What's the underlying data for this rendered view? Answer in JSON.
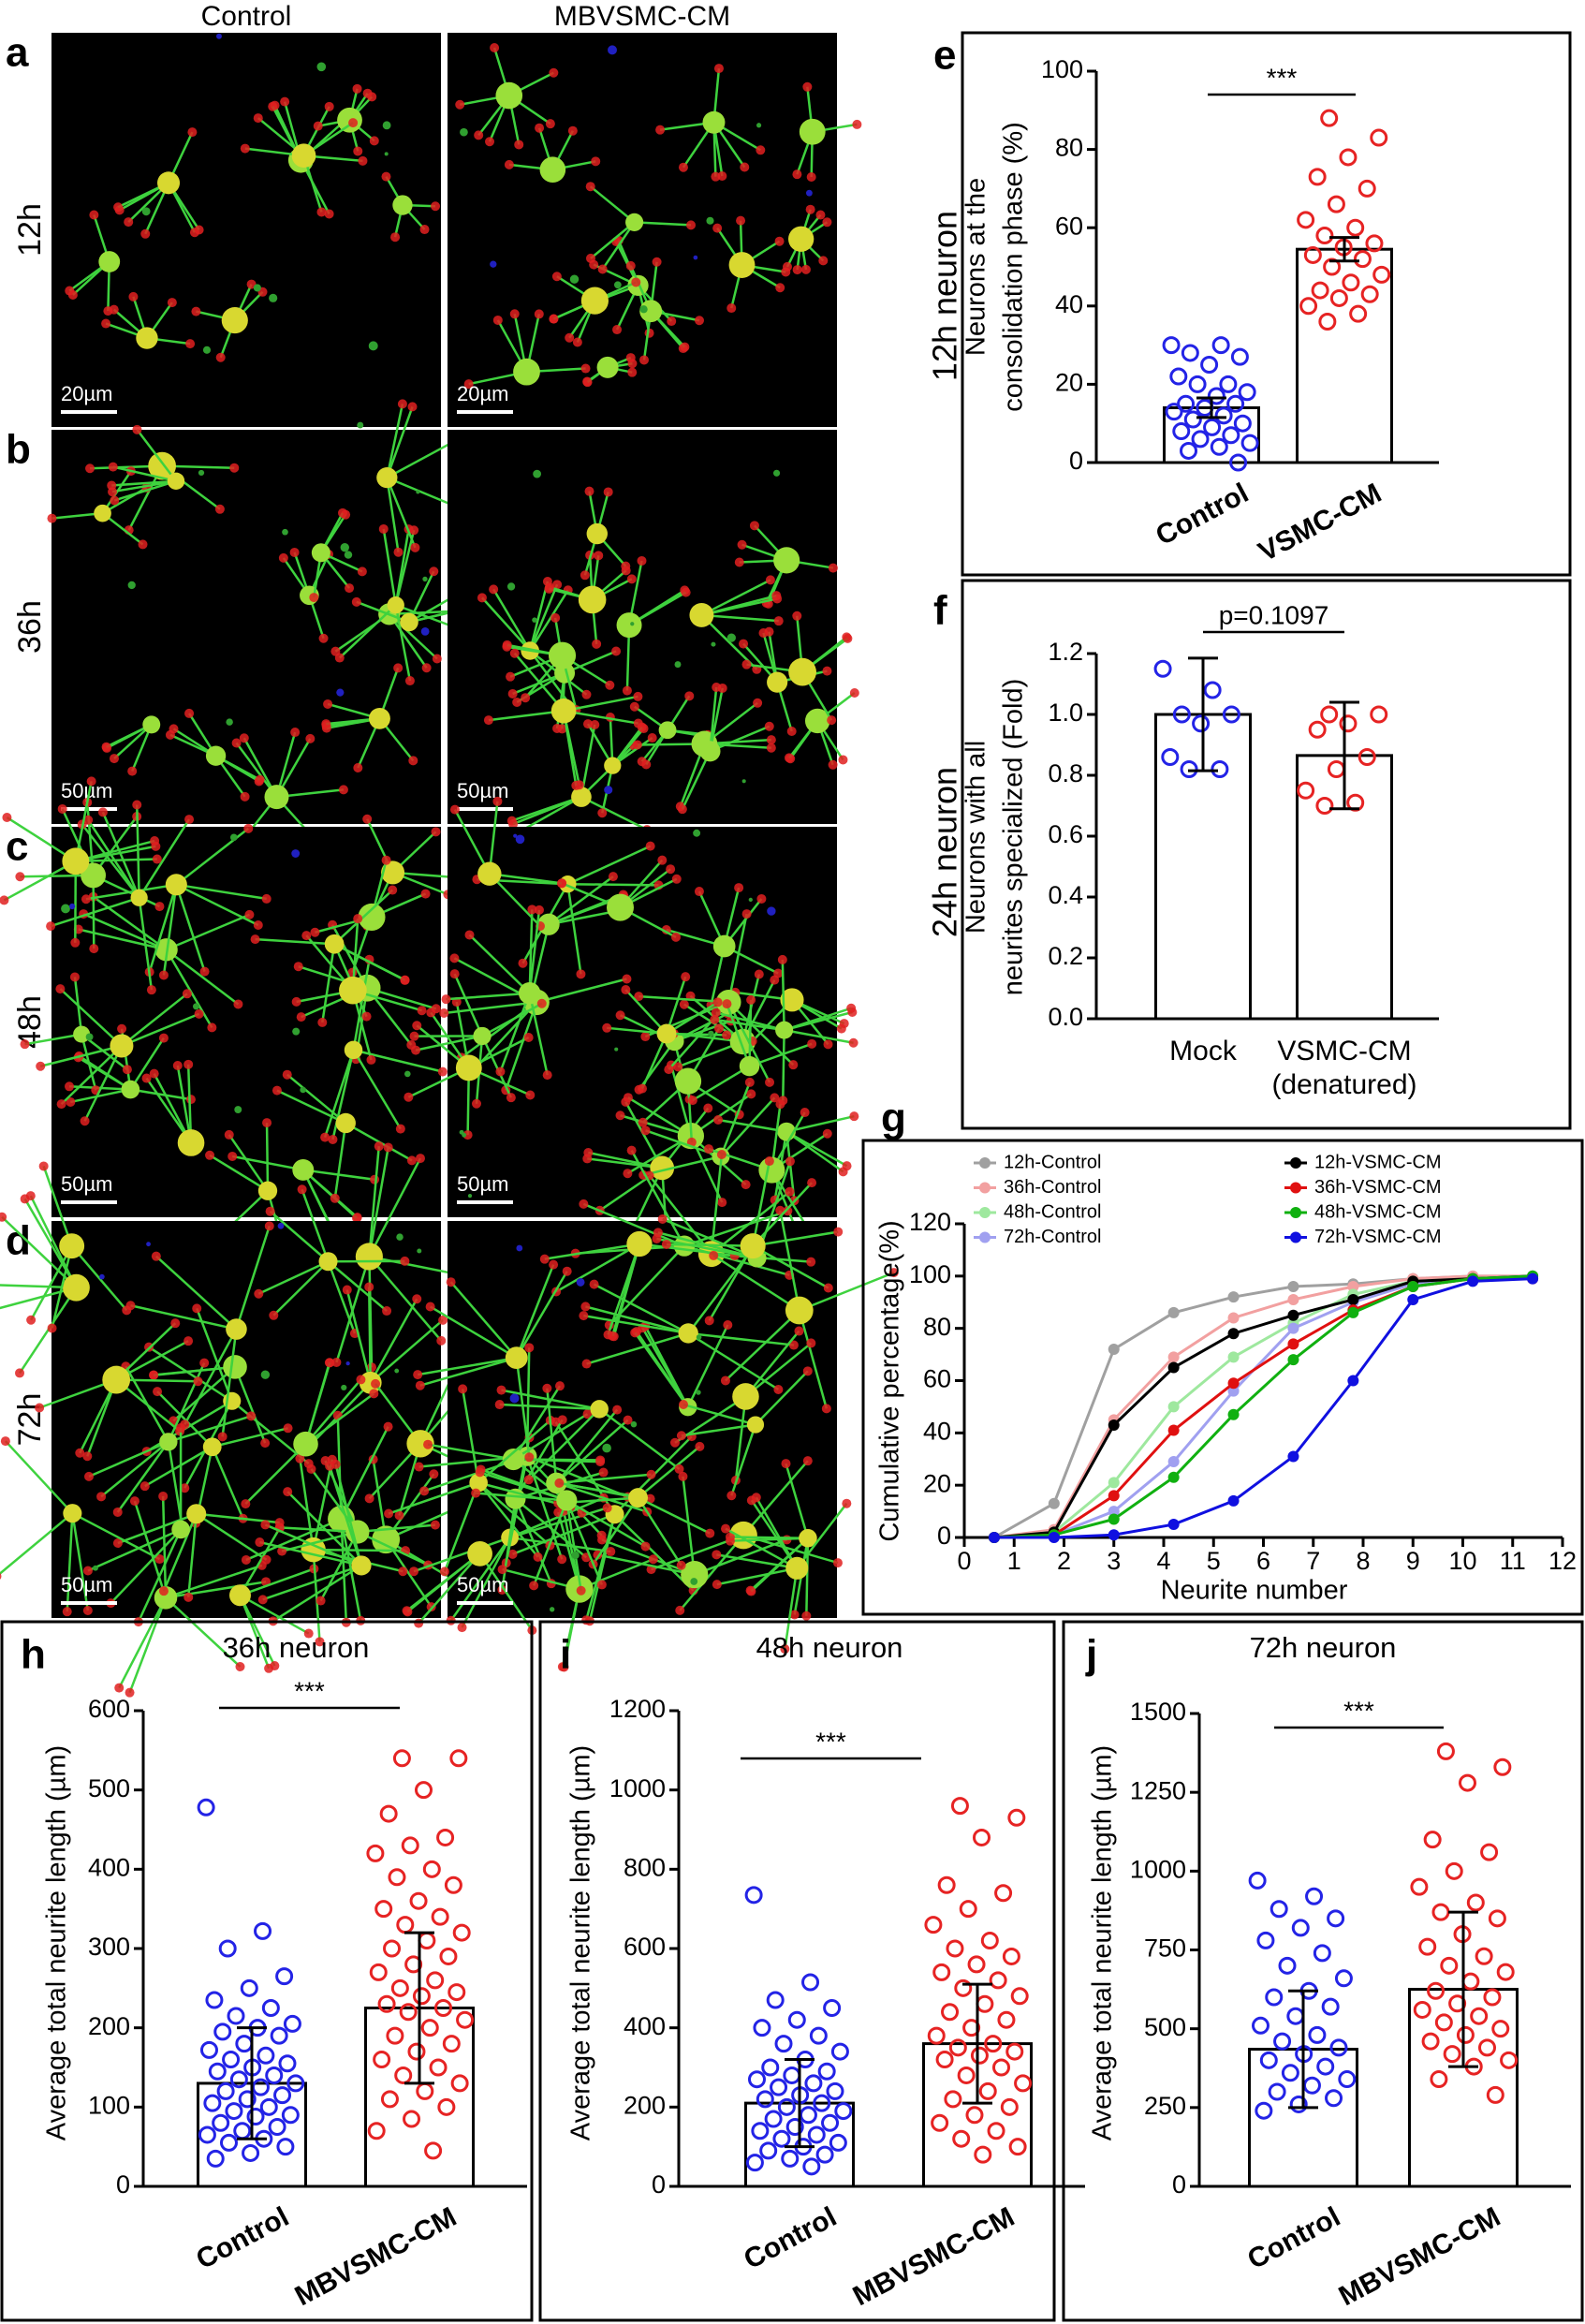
{
  "images": {
    "columns": [
      "Control",
      "MBVSMC-CM"
    ],
    "rows": [
      {
        "panel": "a",
        "label": "12h",
        "scale_bars": [
          "20µm",
          "20µm"
        ]
      },
      {
        "panel": "b",
        "label": "36h",
        "scale_bars": [
          "50µm",
          "50µm"
        ]
      },
      {
        "panel": "c",
        "label": "48h",
        "scale_bars": [
          "50µm",
          "50µm"
        ]
      },
      {
        "panel": "d",
        "label": "72h",
        "scale_bars": [
          "50µm",
          "50µm"
        ]
      }
    ]
  },
  "chart_data": [
    {
      "type": "bar",
      "panel": "e",
      "outer_label": "12h neuron",
      "ylabel": [
        "Neurons at  the",
        "consolidation phase (%)"
      ],
      "categories": [
        "Control",
        "VSMC-CM"
      ],
      "values": [
        14,
        54.5
      ],
      "errors": [
        2.5,
        3
      ],
      "points": [
        [
          30,
          30,
          28,
          27,
          25,
          22,
          20,
          20,
          18,
          17,
          15,
          15,
          14,
          13,
          12,
          11,
          10,
          9,
          8,
          7,
          6,
          5,
          4,
          3,
          0
        ],
        [
          88,
          83,
          78,
          73,
          70,
          66,
          62,
          60,
          58,
          56,
          55,
          53,
          52,
          50,
          48,
          46,
          44,
          43,
          42,
          40,
          38,
          36
        ]
      ],
      "point_colors": [
        "#2323e6",
        "#e62323"
      ],
      "ylim": [
        0,
        100
      ],
      "yticks": [
        0,
        20,
        40,
        60,
        80,
        100
      ],
      "significance": "***"
    },
    {
      "type": "bar",
      "panel": "f",
      "outer_label": "24h neuron",
      "ylabel": [
        "Neurons with all",
        "neurites specialized (Fold)"
      ],
      "categories": [
        "Mock",
        "VSMC-CM (denatured)"
      ],
      "values": [
        1.0,
        0.865
      ],
      "errors": [
        0.185,
        0.175
      ],
      "points": [
        [
          1.15,
          1.08,
          1.0,
          1.0,
          0.97,
          0.86,
          0.82,
          0.82
        ],
        [
          1.0,
          1.0,
          0.97,
          0.95,
          0.86,
          0.82,
          0.75,
          0.71,
          0.7
        ]
      ],
      "point_colors": [
        "#2323e6",
        "#e62323"
      ],
      "ylim": [
        0,
        1.2
      ],
      "yticks": [
        {
          "value": 0,
          "label": "0.0"
        },
        0.2,
        0.4,
        0.6,
        0.8,
        {
          "value": 1,
          "label": "1.0"
        },
        1.2
      ],
      "significance": "p=0.1097"
    },
    {
      "type": "line",
      "panel": "g",
      "xlabel": "Neurite number",
      "ylabel": [
        "Cumulative percentage(%)"
      ],
      "x": [
        0.6,
        1.8,
        3,
        4.2,
        5.4,
        6.6,
        7.8,
        9,
        10.2,
        11.4
      ],
      "series": [
        {
          "name": "12h-Control",
          "color": "#a0a0a0",
          "values": [
            0,
            13,
            72,
            86,
            92,
            96,
            97,
            99,
            100,
            100
          ]
        },
        {
          "name": "36h-Control",
          "color": "#f2a0a0",
          "values": [
            0,
            3,
            45,
            69,
            84,
            91,
            96,
            99,
            100,
            100
          ]
        },
        {
          "name": "48h-Control",
          "color": "#9ee89e",
          "values": [
            0,
            2,
            21,
            50,
            69,
            82,
            93,
            98,
            99,
            100
          ]
        },
        {
          "name": "72h-Control",
          "color": "#a0a0f0",
          "values": [
            0,
            1,
            10,
            29,
            56,
            80,
            90,
            97,
            99,
            100
          ]
        },
        {
          "name": "12h-VSMC-CM",
          "color": "#000000",
          "values": [
            0,
            2,
            43,
            65,
            78,
            85,
            91,
            98,
            99,
            100
          ]
        },
        {
          "name": "36h-VSMC-CM",
          "color": "#e01010",
          "values": [
            0,
            1,
            16,
            41,
            59,
            74,
            87,
            96,
            99,
            99
          ]
        },
        {
          "name": "48h-VSMC-CM",
          "color": "#10b010",
          "values": [
            0,
            1,
            7,
            23,
            47,
            68,
            86,
            96,
            99,
            100
          ]
        },
        {
          "name": "72h-VSMC-CM",
          "color": "#1010e0",
          "values": [
            0,
            0,
            1,
            5,
            14,
            31,
            60,
            91,
            98,
            99
          ]
        }
      ],
      "xlim": [
        0,
        12
      ],
      "ylim": [
        0,
        120
      ],
      "xticks": [
        0,
        1,
        2,
        3,
        4,
        5,
        6,
        7,
        8,
        9,
        10,
        11,
        12
      ],
      "yticks": [
        0,
        20,
        40,
        60,
        80,
        100,
        120
      ]
    },
    {
      "type": "bar",
      "panel": "h",
      "title": "36h neuron",
      "ylabel": [
        "Average total neurite length (µm)"
      ],
      "categories": [
        "Control",
        "MBVSMC-CM"
      ],
      "values": [
        130,
        225
      ],
      "errors": [
        70,
        95
      ],
      "points": [
        [
          478,
          322,
          300,
          265,
          250,
          235,
          225,
          215,
          205,
          200,
          195,
          190,
          180,
          172,
          165,
          160,
          155,
          150,
          145,
          140,
          135,
          130,
          125,
          120,
          115,
          110,
          105,
          100,
          95,
          90,
          88,
          80,
          75,
          70,
          65,
          60,
          55,
          50,
          42,
          35
        ],
        [
          540,
          540,
          500,
          470,
          440,
          430,
          420,
          400,
          390,
          380,
          360,
          350,
          340,
          330,
          320,
          310,
          300,
          290,
          280,
          270,
          260,
          250,
          245,
          240,
          230,
          225,
          220,
          210,
          200,
          190,
          180,
          170,
          160,
          150,
          140,
          130,
          120,
          110,
          100,
          85,
          70,
          45
        ]
      ],
      "point_colors": [
        "#2323e6",
        "#e62323"
      ],
      "ylim": [
        0,
        600
      ],
      "yticks": [
        0,
        100,
        200,
        300,
        400,
        500,
        600
      ],
      "significance": "***"
    },
    {
      "type": "bar",
      "panel": "i",
      "title": "48h neuron",
      "ylabel": [
        "Average total neurite length (µm)"
      ],
      "categories": [
        "Control",
        "MBVSMC-CM"
      ],
      "values": [
        210,
        360
      ],
      "errors": [
        110,
        150
      ],
      "points": [
        [
          735,
          515,
          470,
          450,
          420,
          400,
          380,
          360,
          340,
          320,
          300,
          290,
          280,
          270,
          260,
          250,
          240,
          230,
          220,
          210,
          200,
          190,
          180,
          170,
          160,
          150,
          140,
          130,
          120,
          110,
          100,
          90,
          80,
          70,
          60,
          50
        ],
        [
          960,
          930,
          880,
          760,
          740,
          700,
          660,
          620,
          600,
          580,
          560,
          540,
          520,
          500,
          480,
          460,
          440,
          420,
          400,
          380,
          360,
          350,
          340,
          330,
          320,
          300,
          280,
          260,
          240,
          220,
          200,
          180,
          160,
          140,
          120,
          100,
          80
        ]
      ],
      "point_colors": [
        "#2323e6",
        "#e62323"
      ],
      "ylim": [
        0,
        1200
      ],
      "yticks": [
        0,
        200,
        400,
        600,
        800,
        1000,
        1200
      ],
      "significance": "***"
    },
    {
      "type": "bar",
      "panel": "j",
      "title": "72h neuron",
      "ylabel": [
        "Average total neurite length (µm)"
      ],
      "categories": [
        "Control",
        "MBVSMC-CM"
      ],
      "values": [
        435,
        625
      ],
      "errors": [
        185,
        245
      ],
      "points": [
        [
          970,
          920,
          880,
          850,
          820,
          780,
          740,
          700,
          660,
          620,
          600,
          570,
          540,
          510,
          480,
          460,
          440,
          420,
          400,
          380,
          360,
          340,
          320,
          300,
          280,
          260,
          240
        ],
        [
          1380,
          1330,
          1280,
          1100,
          1060,
          1000,
          950,
          900,
          870,
          850,
          800,
          760,
          730,
          700,
          680,
          650,
          620,
          600,
          580,
          560,
          540,
          520,
          500,
          480,
          460,
          440,
          420,
          400,
          380,
          340,
          290
        ]
      ],
      "point_colors": [
        "#2323e6",
        "#e62323"
      ],
      "ylim": [
        0,
        1500
      ],
      "yticks": [
        0,
        250,
        500,
        750,
        1000,
        1250,
        1500
      ],
      "significance": "***"
    }
  ]
}
